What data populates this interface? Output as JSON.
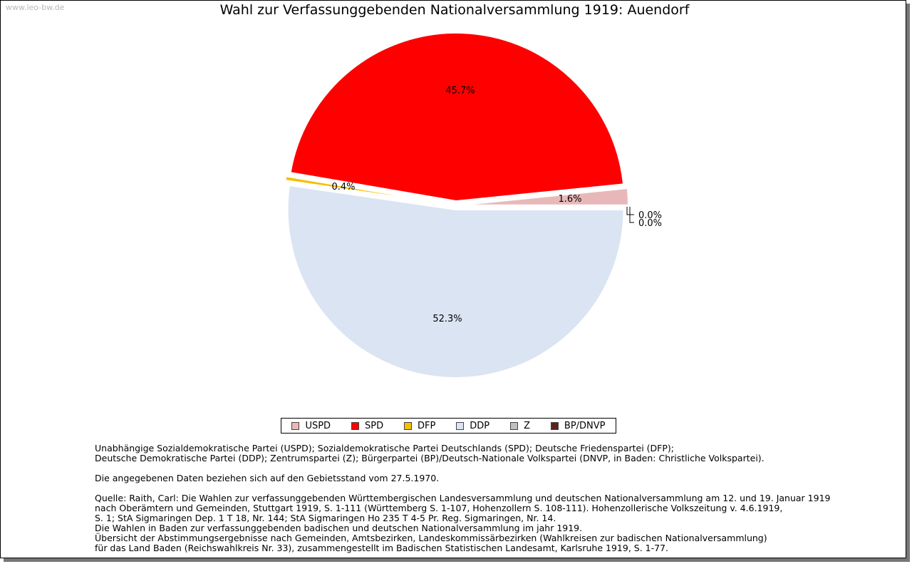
{
  "watermark": "www.leo-bw.de",
  "chart_data": {
    "type": "pie",
    "title": "Wahl zur Verfassunggebenden Nationalversammlung 1919: Auendorf",
    "slices": [
      {
        "name": "USPD",
        "value": 1.6,
        "label": "1.6%",
        "color": "#e8b8b8"
      },
      {
        "name": "SPD",
        "value": 45.7,
        "label": "45.7%",
        "color": "#ff0000"
      },
      {
        "name": "DFP",
        "value": 0.4,
        "label": "0.4%",
        "color": "#f5c000"
      },
      {
        "name": "DDP",
        "value": 52.3,
        "label": "52.3%",
        "color": "#dbe4f2"
      },
      {
        "name": "Z",
        "value": 0.0,
        "label": "0.0%",
        "color": "#c0c0c0"
      },
      {
        "name": "BP/DNVP",
        "value": 0.0,
        "label": "0.0%",
        "color": "#602020"
      }
    ],
    "legend_position": "bottom"
  },
  "notes": {
    "parties_line1": "Unabhängige Sozialdemokratische Partei (USPD); Sozialdemokratische Partei Deutschlands (SPD); Deutsche Friedenspartei (DFP);",
    "parties_line2": "Deutsche Demokratische Partei (DDP); Zentrumspartei (Z); Bürgerpartei (BP)/Deutsch-Nationale Volkspartei (DNVP, in Baden: Christliche Volkspartei).",
    "gebietsstand": "Die angegebenen Daten beziehen sich auf den Gebietsstand vom 27.5.1970.",
    "source_lines": [
      "Quelle: Raith, Carl: Die Wahlen zur verfassunggebenden Württembergischen Landesversammlung und deutschen Nationalversammlung am 12. und 19. Januar 1919",
      "nach Oberämtern und Gemeinden, Stuttgart 1919, S. 1-111 (Württemberg S. 1-107, Hohenzollern S. 108-111). Hohenzollerische Volkszeitung v. 4.6.1919,",
      "S. 1; StA Sigmaringen Dep. 1 T 18, Nr. 144; StA Sigmaringen Ho 235 T 4-5 Pr. Reg. Sigmaringen, Nr. 14.",
      "Die Wahlen in Baden zur verfassunggebenden badischen und deutschen Nationalversammlung im jahr 1919.",
      "Übersicht der Abstimmungsergebnisse nach Gemeinden, Amtsbezirken, Landeskommissärbezirken (Wahlkreisen zur badischen Nationalversammlung)",
      "für das Land Baden (Reichswahlkreis Nr. 33), zusammengestellt im Badischen Statistischen Landesamt, Karlsruhe 1919, S. 1-77."
    ]
  }
}
